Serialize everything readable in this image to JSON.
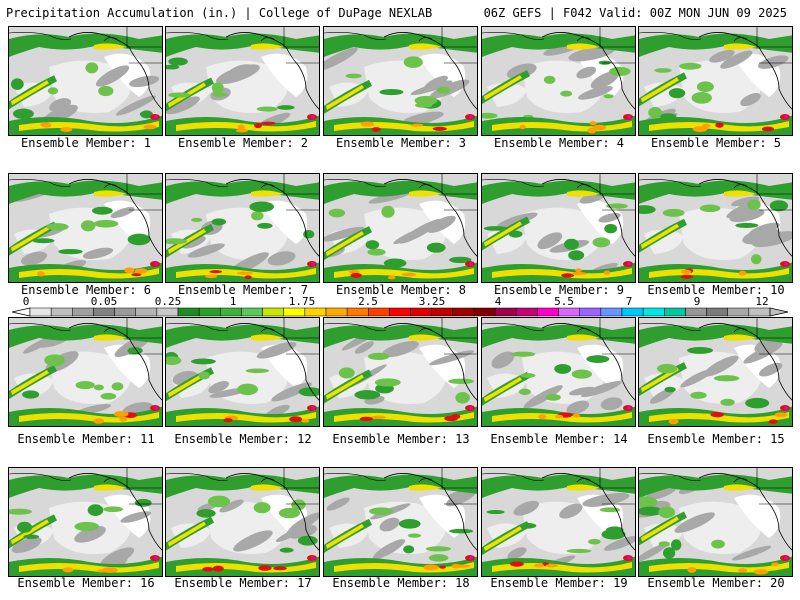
{
  "header": {
    "left_text": "Precipitation Accumulation (in.) | College of DuPage NEXLAB",
    "right_text": "06Z GEFS | F042 Valid: 00Z MON JUN 09 2025"
  },
  "members": [
    "Ensemble Member: 1",
    "Ensemble Member: 2",
    "Ensemble Member: 3",
    "Ensemble Member: 4",
    "Ensemble Member: 5",
    "Ensemble Member: 6",
    "Ensemble Member: 7",
    "Ensemble Member: 8",
    "Ensemble Member: 9",
    "Ensemble Member: 10",
    "Ensemble Member: 11",
    "Ensemble Member: 12",
    "Ensemble Member: 13",
    "Ensemble Member: 14",
    "Ensemble Member: 15",
    "Ensemble Member: 16",
    "Ensemble Member: 17",
    "Ensemble Member: 18",
    "Ensemble Member: 19",
    "Ensemble Member: 20"
  ],
  "color_scale": {
    "labels": [
      "0",
      "0.05",
      "0.25",
      "1",
      "1.75",
      "2.5",
      "3.25",
      "4",
      "5.5",
      "7",
      "9",
      "12"
    ],
    "colors": [
      "#e6e6e6",
      "#bebebe",
      "#a0a0a0",
      "#828282",
      "#9a9a9a",
      "#b4b4b4",
      "#c8c8c8",
      "#1e8c1e",
      "#2aa02a",
      "#3cb43c",
      "#5ac85a",
      "#c8e600",
      "#ffff00",
      "#ffd200",
      "#ffaa00",
      "#ff7800",
      "#ff4000",
      "#ff0000",
      "#e00000",
      "#c00000",
      "#a00000",
      "#800000",
      "#a0004c",
      "#c80078",
      "#ff00c8",
      "#dc64ff",
      "#9b64ff",
      "#6496ff",
      "#00c8ff",
      "#00e6e6",
      "#00c8a0",
      "#969696",
      "#7a7a7a",
      "#a8a8a8",
      "#c0c0c0"
    ]
  },
  "map_colors": {
    "background": "#d8d8d8",
    "light_gray": "#eeeeee",
    "white": "#ffffff",
    "dark_gray": "#a8a8a8",
    "green": "#2e9e2e",
    "light_green": "#6cc24a",
    "yellow": "#f0e000",
    "orange": "#ffa000",
    "red": "#e01010",
    "magenta": "#e000e0",
    "coast": "#000000"
  }
}
